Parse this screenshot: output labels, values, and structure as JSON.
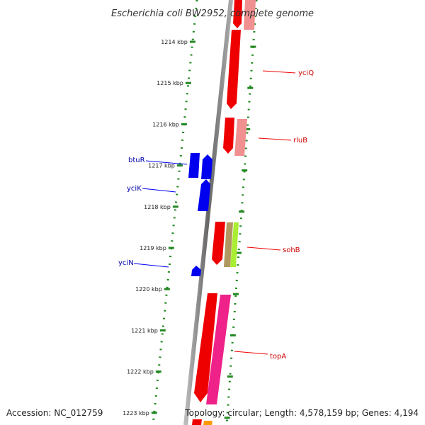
{
  "title": "Escherichia coli BW2952, complete genome",
  "footer": {
    "accession": "Accession: NC_012759",
    "topology": "Topology: circular; Length: 4,578,159 bp; Genes: 4,194"
  },
  "kbp_ticks": [
    "1214 kbp",
    "1215 kbp",
    "1216 kbp",
    "1217 kbp",
    "1218 kbp",
    "1219 kbp",
    "1220 kbp",
    "1221 kbp",
    "1222 kbp",
    "1223 kbp"
  ],
  "genes_minus": [
    {
      "name": "btuR"
    },
    {
      "name": "yciK"
    },
    {
      "name": "yciN"
    }
  ],
  "genes_plus": [
    {
      "name": "yciQ"
    },
    {
      "name": "rluB"
    },
    {
      "name": "sohB"
    },
    {
      "name": "topA"
    }
  ],
  "colors": {
    "minus_strand": "#0000ee",
    "minus_label": "#0000aa",
    "plus_strand": "#ee0000",
    "plus_label": "#cc0000",
    "plus_light": "#f09090",
    "magenta": "#ee2288",
    "olive": "#b09860",
    "lime": "#aaee33",
    "orange": "#ff9900",
    "tick_green": "#228822",
    "axis_gray": "#888888"
  }
}
